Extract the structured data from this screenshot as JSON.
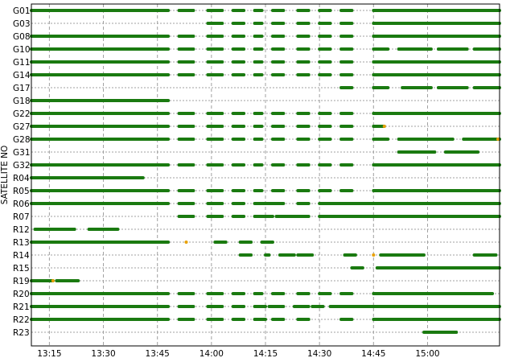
{
  "chart_data": {
    "type": "timeline",
    "title": "",
    "xlabel": "",
    "ylabel": "SATELLITE NO",
    "x_unit": "time (hh:mm)",
    "xlim": [
      "13:10",
      "15:20"
    ],
    "x_ticks": [
      "13:15",
      "13:30",
      "13:45",
      "14:00",
      "14:15",
      "14:30",
      "14:45",
      "15:00"
    ],
    "grid": true,
    "colors": {
      "track": "#1a7a10",
      "marker": "#e8a000",
      "grid": "#a0a0a0",
      "frame": "#000000"
    },
    "satellites": [
      {
        "name": "G01",
        "segments": [
          [
            "13:10",
            "13:48"
          ],
          [
            "13:51",
            "13:55"
          ],
          [
            "13:59",
            "14:03"
          ],
          [
            "14:06",
            "14:09"
          ],
          [
            "14:12",
            "14:14"
          ],
          [
            "14:17",
            "14:20"
          ],
          [
            "14:24",
            "14:27"
          ],
          [
            "14:30",
            "14:33"
          ],
          [
            "14:36",
            "14:39"
          ],
          [
            "14:45",
            "15:20"
          ]
        ]
      },
      {
        "name": "G03",
        "segments": [
          [
            "13:59",
            "14:03"
          ],
          [
            "14:06",
            "14:09"
          ],
          [
            "14:12",
            "14:14"
          ],
          [
            "14:17",
            "14:20"
          ],
          [
            "14:24",
            "14:27"
          ],
          [
            "14:30",
            "14:33"
          ],
          [
            "14:36",
            "14:39"
          ],
          [
            "14:45",
            "15:20"
          ]
        ]
      },
      {
        "name": "G08",
        "segments": [
          [
            "13:10",
            "13:48"
          ],
          [
            "13:51",
            "13:55"
          ],
          [
            "13:59",
            "14:03"
          ],
          [
            "14:06",
            "14:09"
          ],
          [
            "14:12",
            "14:14"
          ],
          [
            "14:17",
            "14:20"
          ],
          [
            "14:24",
            "14:27"
          ],
          [
            "14:30",
            "14:33"
          ],
          [
            "14:36",
            "14:39"
          ],
          [
            "14:45",
            "15:20"
          ]
        ]
      },
      {
        "name": "G10",
        "segments": [
          [
            "13:10",
            "13:48"
          ],
          [
            "13:51",
            "13:55"
          ],
          [
            "13:59",
            "14:03"
          ],
          [
            "14:06",
            "14:09"
          ],
          [
            "14:12",
            "14:14"
          ],
          [
            "14:17",
            "14:20"
          ],
          [
            "14:24",
            "14:27"
          ],
          [
            "14:30",
            "14:33"
          ],
          [
            "14:36",
            "14:39"
          ],
          [
            "14:45",
            "14:49"
          ],
          [
            "14:52",
            "15:01"
          ],
          [
            "15:03",
            "15:11"
          ],
          [
            "15:13",
            "15:20"
          ]
        ]
      },
      {
        "name": "G11",
        "segments": [
          [
            "13:10",
            "13:48"
          ],
          [
            "13:51",
            "13:55"
          ],
          [
            "13:59",
            "14:03"
          ],
          [
            "14:06",
            "14:09"
          ],
          [
            "14:12",
            "14:14"
          ],
          [
            "14:17",
            "14:20"
          ],
          [
            "14:24",
            "14:27"
          ],
          [
            "14:30",
            "14:33"
          ],
          [
            "14:36",
            "14:39"
          ],
          [
            "14:45",
            "15:20"
          ]
        ]
      },
      {
        "name": "G14",
        "segments": [
          [
            "13:10",
            "13:48"
          ],
          [
            "13:51",
            "13:55"
          ],
          [
            "13:59",
            "14:03"
          ],
          [
            "14:06",
            "14:09"
          ],
          [
            "14:12",
            "14:14"
          ],
          [
            "14:17",
            "14:20"
          ],
          [
            "14:24",
            "14:27"
          ],
          [
            "14:30",
            "14:33"
          ],
          [
            "14:36",
            "14:39"
          ],
          [
            "14:45",
            "15:20"
          ]
        ]
      },
      {
        "name": "G17",
        "segments": [
          [
            "14:36",
            "14:39"
          ],
          [
            "14:45",
            "14:49"
          ],
          [
            "14:53",
            "15:01"
          ],
          [
            "15:03",
            "15:11"
          ],
          [
            "15:13",
            "15:20"
          ]
        ]
      },
      {
        "name": "G18",
        "segments": [
          [
            "13:10",
            "13:48"
          ]
        ]
      },
      {
        "name": "G22",
        "segments": [
          [
            "13:10",
            "13:48"
          ],
          [
            "13:51",
            "13:55"
          ],
          [
            "13:59",
            "14:03"
          ],
          [
            "14:06",
            "14:09"
          ],
          [
            "14:12",
            "14:14"
          ],
          [
            "14:17",
            "14:20"
          ],
          [
            "14:24",
            "14:27"
          ],
          [
            "14:30",
            "14:33"
          ],
          [
            "14:36",
            "14:39"
          ],
          [
            "14:45",
            "15:20"
          ]
        ]
      },
      {
        "name": "G27",
        "segments": [
          [
            "13:10",
            "13:48"
          ],
          [
            "13:51",
            "13:55"
          ],
          [
            "13:59",
            "14:03"
          ],
          [
            "14:06",
            "14:09"
          ],
          [
            "14:12",
            "14:14"
          ],
          [
            "14:17",
            "14:20"
          ],
          [
            "14:24",
            "14:27"
          ],
          [
            "14:30",
            "14:33"
          ],
          [
            "14:36",
            "14:39"
          ],
          [
            "14:45",
            "14:48"
          ]
        ],
        "markers": [
          "14:48"
        ]
      },
      {
        "name": "G28",
        "segments": [
          [
            "13:10",
            "13:48"
          ],
          [
            "13:51",
            "13:55"
          ],
          [
            "13:59",
            "14:03"
          ],
          [
            "14:06",
            "14:09"
          ],
          [
            "14:12",
            "14:14"
          ],
          [
            "14:17",
            "14:20"
          ],
          [
            "14:24",
            "14:27"
          ],
          [
            "14:30",
            "14:33"
          ],
          [
            "14:36",
            "14:39"
          ],
          [
            "14:45",
            "14:49"
          ],
          [
            "14:52",
            "15:07"
          ],
          [
            "15:10",
            "15:20"
          ]
        ],
        "markers": [
          "15:20"
        ]
      },
      {
        "name": "G31",
        "segments": [
          [
            "14:52",
            "15:02"
          ],
          [
            "15:05",
            "15:14"
          ]
        ]
      },
      {
        "name": "G32",
        "segments": [
          [
            "13:10",
            "13:48"
          ],
          [
            "13:51",
            "13:55"
          ],
          [
            "13:59",
            "14:03"
          ],
          [
            "14:06",
            "14:09"
          ],
          [
            "14:12",
            "14:14"
          ],
          [
            "14:17",
            "14:20"
          ],
          [
            "14:24",
            "14:27"
          ],
          [
            "14:30",
            "14:33"
          ],
          [
            "14:36",
            "14:39"
          ],
          [
            "14:45",
            "15:20"
          ]
        ]
      },
      {
        "name": "R04",
        "segments": [
          [
            "13:10",
            "13:41"
          ]
        ]
      },
      {
        "name": "R05",
        "segments": [
          [
            "13:10",
            "13:48"
          ],
          [
            "13:51",
            "13:55"
          ],
          [
            "13:59",
            "14:03"
          ],
          [
            "14:06",
            "14:09"
          ],
          [
            "14:12",
            "14:14"
          ],
          [
            "14:17",
            "14:20"
          ],
          [
            "14:24",
            "14:27"
          ],
          [
            "14:30",
            "14:33"
          ],
          [
            "14:36",
            "14:39"
          ],
          [
            "14:45",
            "15:20"
          ]
        ]
      },
      {
        "name": "R06",
        "segments": [
          [
            "13:10",
            "13:48"
          ],
          [
            "13:51",
            "13:55"
          ],
          [
            "13:59",
            "14:03"
          ],
          [
            "14:06",
            "14:09"
          ],
          [
            "14:12",
            "14:17"
          ],
          [
            "14:17",
            "14:20"
          ],
          [
            "14:24",
            "14:27"
          ],
          [
            "14:30",
            "15:20"
          ]
        ]
      },
      {
        "name": "R07",
        "segments": [
          [
            "13:51",
            "13:55"
          ],
          [
            "13:59",
            "14:03"
          ],
          [
            "14:06",
            "14:09"
          ],
          [
            "14:12",
            "14:17"
          ],
          [
            "14:18",
            "14:27"
          ],
          [
            "14:30",
            "15:20"
          ]
        ]
      },
      {
        "name": "R12",
        "segments": [
          [
            "13:11",
            "13:22"
          ],
          [
            "13:26",
            "13:34"
          ]
        ]
      },
      {
        "name": "R13",
        "segments": [
          [
            "13:10",
            "13:48"
          ],
          [
            "14:01",
            "14:04"
          ],
          [
            "14:08",
            "14:11"
          ],
          [
            "14:14",
            "14:17"
          ]
        ],
        "markers": [
          "13:53"
        ]
      },
      {
        "name": "R14",
        "segments": [
          [
            "14:08",
            "14:11"
          ],
          [
            "14:15",
            "14:16"
          ],
          [
            "14:19",
            "14:23"
          ],
          [
            "14:24",
            "14:28"
          ],
          [
            "14:37",
            "14:40"
          ],
          [
            "14:47",
            "14:59"
          ],
          [
            "15:13",
            "15:19"
          ]
        ],
        "markers": [
          "14:45"
        ]
      },
      {
        "name": "R15",
        "segments": [
          [
            "14:39",
            "14:42"
          ],
          [
            "14:46",
            "15:20"
          ]
        ]
      },
      {
        "name": "R19",
        "segments": [
          [
            "13:10",
            "13:16"
          ],
          [
            "13:17",
            "13:23"
          ]
        ],
        "markers": [
          "13:16"
        ]
      },
      {
        "name": "R20",
        "segments": [
          [
            "13:10",
            "13:48"
          ],
          [
            "13:51",
            "13:55"
          ],
          [
            "13:59",
            "14:03"
          ],
          [
            "14:06",
            "14:09"
          ],
          [
            "14:12",
            "14:14"
          ],
          [
            "14:17",
            "14:20"
          ],
          [
            "14:24",
            "14:27"
          ],
          [
            "14:30",
            "14:33"
          ],
          [
            "14:36",
            "14:39"
          ],
          [
            "14:45",
            "15:18"
          ]
        ]
      },
      {
        "name": "R21",
        "segments": [
          [
            "13:10",
            "13:48"
          ],
          [
            "13:51",
            "13:55"
          ],
          [
            "13:59",
            "14:03"
          ],
          [
            "14:06",
            "14:09"
          ],
          [
            "14:12",
            "14:15"
          ],
          [
            "14:16",
            "14:20"
          ],
          [
            "14:23",
            "14:27"
          ],
          [
            "14:28",
            "14:31"
          ],
          [
            "14:33",
            "15:20"
          ]
        ]
      },
      {
        "name": "R22",
        "segments": [
          [
            "13:10",
            "13:48"
          ],
          [
            "13:51",
            "13:55"
          ],
          [
            "13:59",
            "14:03"
          ],
          [
            "14:06",
            "14:09"
          ],
          [
            "14:12",
            "14:15"
          ],
          [
            "14:17",
            "14:20"
          ],
          [
            "14:24",
            "14:27"
          ],
          [
            "14:36",
            "14:39"
          ],
          [
            "14:45",
            "15:20"
          ]
        ]
      },
      {
        "name": "R23",
        "segments": [
          [
            "14:59",
            "15:08"
          ]
        ]
      }
    ]
  }
}
